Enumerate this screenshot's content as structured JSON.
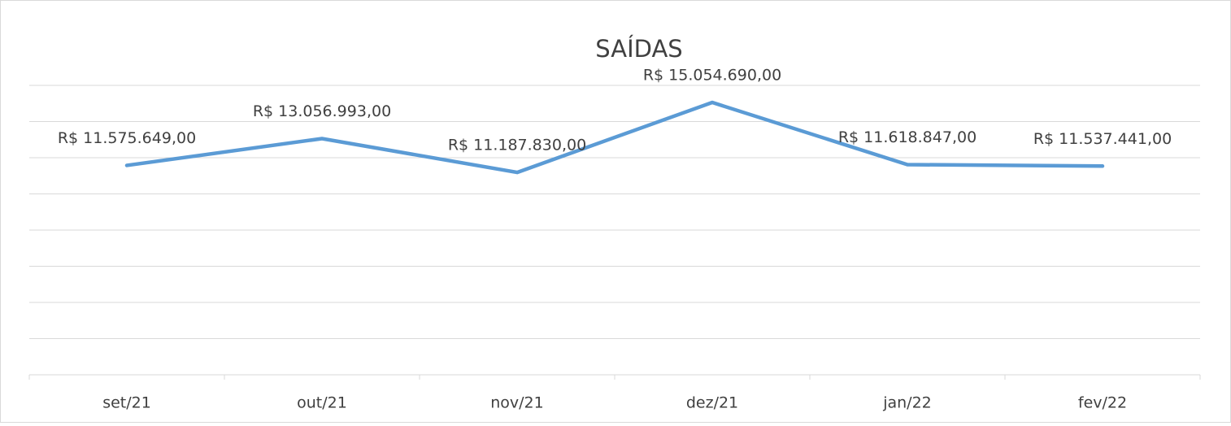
{
  "chart_data": {
    "type": "line",
    "title": "SAÍDAS",
    "categories": [
      "set/21",
      "out/21",
      "nov/21",
      "dez/21",
      "jan/22",
      "fev/22"
    ],
    "series": [
      {
        "name": "SAÍDAS",
        "color": "#5b9bd5",
        "values": [
          11575649,
          13056993,
          11187830,
          15054690,
          11618847,
          11537441
        ],
        "value_labels": [
          "R$ 11.575.649,00",
          "R$ 13.056.993,00",
          "R$ 11.187.830,00",
          "R$ 15.054.690,00",
          "R$ 11.618.847,00",
          "R$ 11.537.441,00"
        ]
      }
    ],
    "ylim": [
      0,
      16000000
    ],
    "yticks": [
      0,
      2000000,
      4000000,
      6000000,
      8000000,
      10000000,
      12000000,
      14000000,
      16000000
    ],
    "grid": true
  }
}
